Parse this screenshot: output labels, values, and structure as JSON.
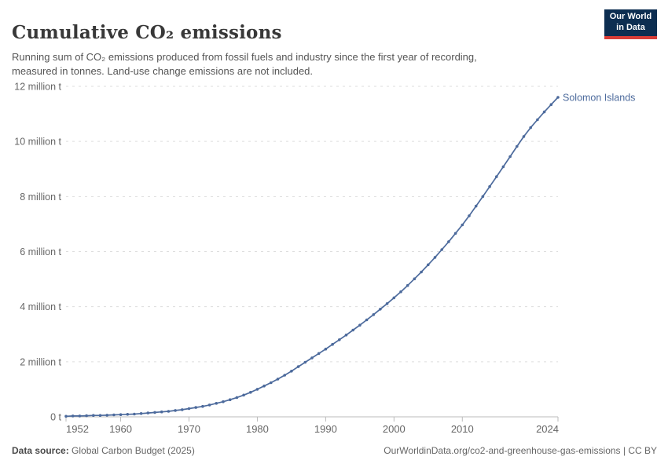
{
  "header": {
    "title": "Cumulative CO₂ emissions",
    "subtitle": "Running sum of CO₂ emissions produced from fossil fuels and industry since the first year of recording, measured in tonnes. Land-use change emissions are not included.",
    "logo": {
      "line1": "Our World",
      "line2": "in Data",
      "bg_color": "#0d2e51",
      "stripe_color": "#d93d37"
    }
  },
  "footer": {
    "source_label": "Data source:",
    "source_value": "Global Carbon Budget (2025)",
    "link_text": "OurWorldinData.org/co2-and-greenhouse-gas-emissions | CC BY"
  },
  "chart_data": {
    "type": "line",
    "title": "Cumulative CO₂ emissions",
    "xlabel": "",
    "ylabel": "",
    "y_unit": "million tonnes",
    "xlim": [
      1952,
      2024
    ],
    "ylim": [
      0,
      12
    ],
    "grid": "horizontal-dashed",
    "legend_position": "end-of-line-label",
    "colors": {
      "line": "#4C6A9C",
      "grid": "#dddddd",
      "axis": "#bbbbbb",
      "tick_text": "#666666"
    },
    "x_ticks": [
      1952,
      1960,
      1970,
      1980,
      1990,
      2000,
      2010,
      2024
    ],
    "y_ticks": [
      {
        "v": 0,
        "label": "0 t"
      },
      {
        "v": 2,
        "label": "2 million t"
      },
      {
        "v": 4,
        "label": "4 million t"
      },
      {
        "v": 6,
        "label": "6 million t"
      },
      {
        "v": 8,
        "label": "8 million t"
      },
      {
        "v": 10,
        "label": "10 million t"
      },
      {
        "v": 12,
        "label": "12 million t"
      }
    ],
    "series": [
      {
        "name": "Solomon Islands",
        "x": [
          1952,
          1953,
          1954,
          1955,
          1956,
          1957,
          1958,
          1959,
          1960,
          1961,
          1962,
          1963,
          1964,
          1965,
          1966,
          1967,
          1968,
          1969,
          1970,
          1971,
          1972,
          1973,
          1974,
          1975,
          1976,
          1977,
          1978,
          1979,
          1980,
          1981,
          1982,
          1983,
          1984,
          1985,
          1986,
          1987,
          1988,
          1989,
          1990,
          1991,
          1992,
          1993,
          1994,
          1995,
          1996,
          1997,
          1998,
          1999,
          2000,
          2001,
          2002,
          2003,
          2004,
          2005,
          2006,
          2007,
          2008,
          2009,
          2010,
          2011,
          2012,
          2013,
          2014,
          2015,
          2016,
          2017,
          2018,
          2019,
          2020,
          2021,
          2022,
          2023,
          2024
        ],
        "values_million_t": [
          0.02,
          0.03,
          0.03,
          0.04,
          0.05,
          0.05,
          0.06,
          0.07,
          0.08,
          0.09,
          0.1,
          0.12,
          0.14,
          0.16,
          0.18,
          0.2,
          0.23,
          0.26,
          0.3,
          0.34,
          0.38,
          0.43,
          0.49,
          0.55,
          0.62,
          0.7,
          0.79,
          0.89,
          1.0,
          1.12,
          1.24,
          1.37,
          1.51,
          1.66,
          1.82,
          1.98,
          2.14,
          2.3,
          2.46,
          2.63,
          2.8,
          2.97,
          3.15,
          3.33,
          3.52,
          3.71,
          3.91,
          4.11,
          4.32,
          4.54,
          4.77,
          5.01,
          5.26,
          5.52,
          5.79,
          6.07,
          6.36,
          6.66,
          6.97,
          7.3,
          7.65,
          8.0,
          8.36,
          8.72,
          9.08,
          9.45,
          9.82,
          10.18,
          10.5,
          10.79,
          11.07,
          11.34,
          11.6
        ]
      }
    ]
  }
}
